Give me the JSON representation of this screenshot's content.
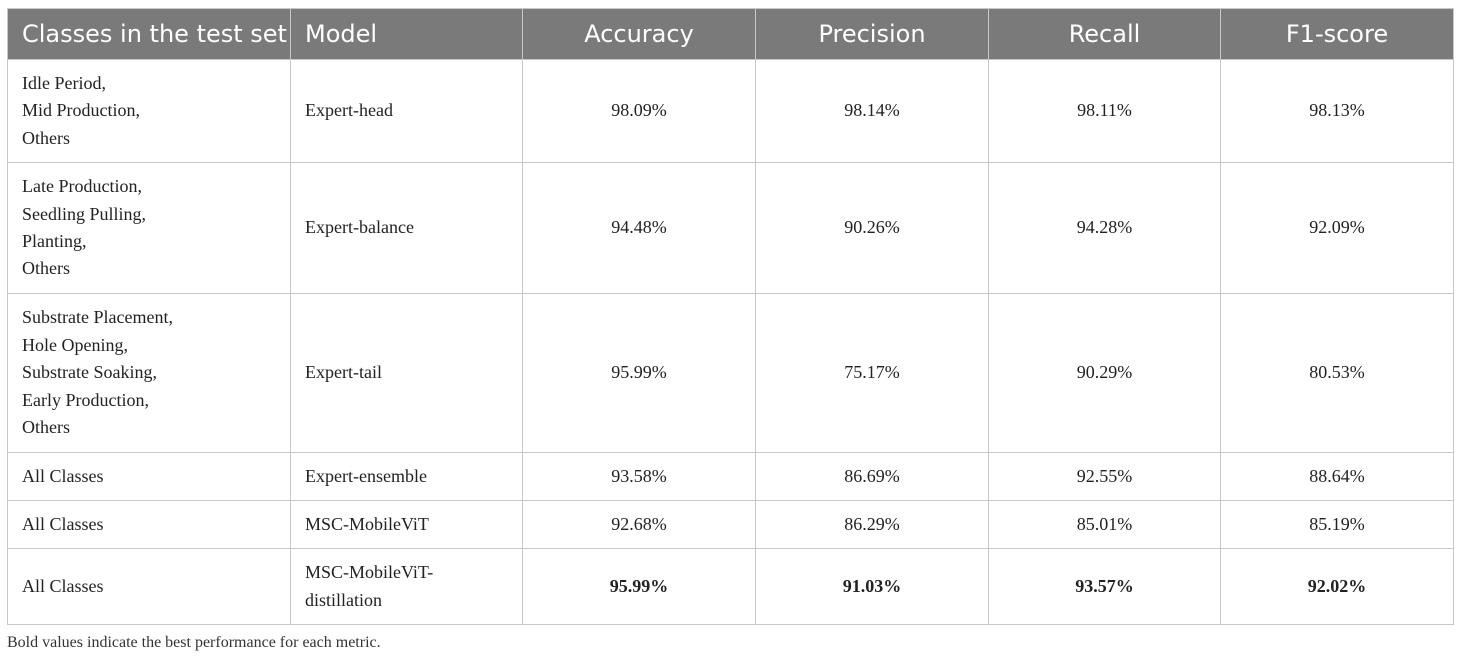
{
  "table": {
    "headers": [
      "Classes in the test set",
      "Model",
      "Accuracy",
      "Precision",
      "Recall",
      "F1-score"
    ],
    "rows": [
      {
        "classes": [
          "Idle Period,",
          "Mid Production,",
          "Others"
        ],
        "model": "Expert-head",
        "accuracy": "98.09%",
        "precision": "98.14%",
        "recall": "98.11%",
        "f1": "98.13%",
        "bold": false
      },
      {
        "classes": [
          "Late Production,",
          "Seedling Pulling,",
          "Planting,",
          "Others"
        ],
        "model": "Expert-balance",
        "accuracy": "94.48%",
        "precision": "90.26%",
        "recall": "94.28%",
        "f1": "92.09%",
        "bold": false
      },
      {
        "classes": [
          "Substrate Placement,",
          "Hole Opening,",
          "Substrate Soaking,",
          "Early Production,",
          "Others"
        ],
        "model": "Expert-tail",
        "accuracy": "95.99%",
        "precision": "75.17%",
        "recall": "90.29%",
        "f1": "80.53%",
        "bold": false
      },
      {
        "classes": [
          "All Classes"
        ],
        "model": "Expert-ensemble",
        "accuracy": "93.58%",
        "precision": "86.69%",
        "recall": "92.55%",
        "f1": "88.64%",
        "bold": false
      },
      {
        "classes": [
          "All Classes"
        ],
        "model": "MSC-MobileViT",
        "accuracy": "92.68%",
        "precision": "86.29%",
        "recall": "85.01%",
        "f1": "85.19%",
        "bold": false
      },
      {
        "classes": [
          "All Classes"
        ],
        "model": "MSC-MobileViT-distillation",
        "model_lines": [
          "MSC-MobileViT-",
          "distillation"
        ],
        "accuracy": "95.99%",
        "precision": "91.03%",
        "recall": "93.57%",
        "f1": "92.02%",
        "bold": true
      }
    ]
  },
  "footnote": "Bold values indicate the best performance for each metric.",
  "colors": {
    "header_bg": "#7a7a7a",
    "header_text": "#ffffff",
    "border": "#c8c8c8"
  }
}
